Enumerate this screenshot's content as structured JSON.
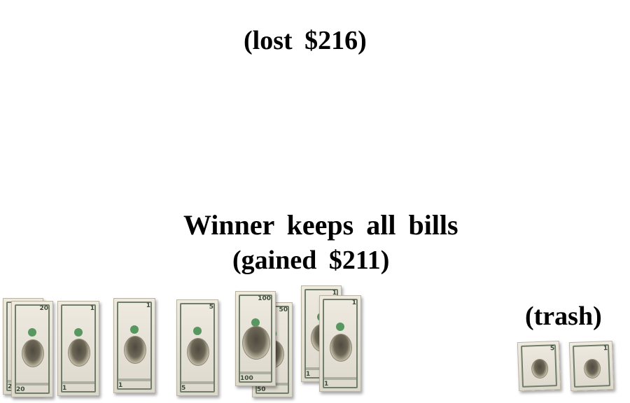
{
  "labels": {
    "lost": "(lost  $216)",
    "winner": "Winner  keeps  all  bills",
    "gained": "(gained  $211)",
    "trash": "(trash)"
  },
  "bills": {
    "winner_pile": [
      {
        "denomination": "20"
      },
      {
        "denomination": "20"
      },
      {
        "denomination": "1"
      },
      {
        "denomination": "1"
      },
      {
        "denomination": "5"
      },
      {
        "denomination": "100"
      },
      {
        "denomination": "50"
      },
      {
        "denomination": "1"
      },
      {
        "denomination": "1"
      }
    ],
    "trash_pile": [
      {
        "denomination": "5"
      },
      {
        "denomination": "1"
      }
    ]
  },
  "colors": {
    "background": "#ffffff",
    "text": "#000000",
    "bill_paper": "#e6e1d5",
    "bill_ink": "#6f7d69",
    "seal_green": "#3e8a4a"
  }
}
